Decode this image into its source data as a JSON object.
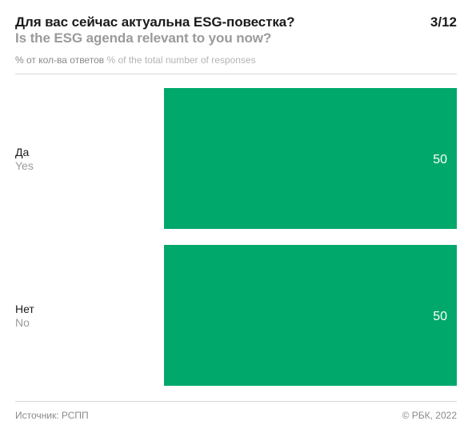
{
  "header": {
    "title_ru": "Для вас сейчас актуальна ESG-повестка?",
    "title_en": "Is the ESG agenda relevant to you now?",
    "page_counter": "3/12",
    "subtitle_ru": "% от кол-ва ответов",
    "subtitle_en": "% of the total number of responses"
  },
  "footer": {
    "source": "Источник: РСПП",
    "copyright": "© РБК, 2022"
  },
  "colors": {
    "bar": "#00a86b",
    "label_primary": "#1a1a1a",
    "label_secondary": "#9a9a9a",
    "value_text": "#ffffff"
  },
  "chart_data": {
    "type": "bar",
    "orientation": "horizontal",
    "categories": [
      "Да",
      "Нет"
    ],
    "categories_en": [
      "Yes",
      "No"
    ],
    "values": [
      50,
      50
    ],
    "xlim": [
      0,
      50
    ],
    "grid": false,
    "legend": "none"
  }
}
